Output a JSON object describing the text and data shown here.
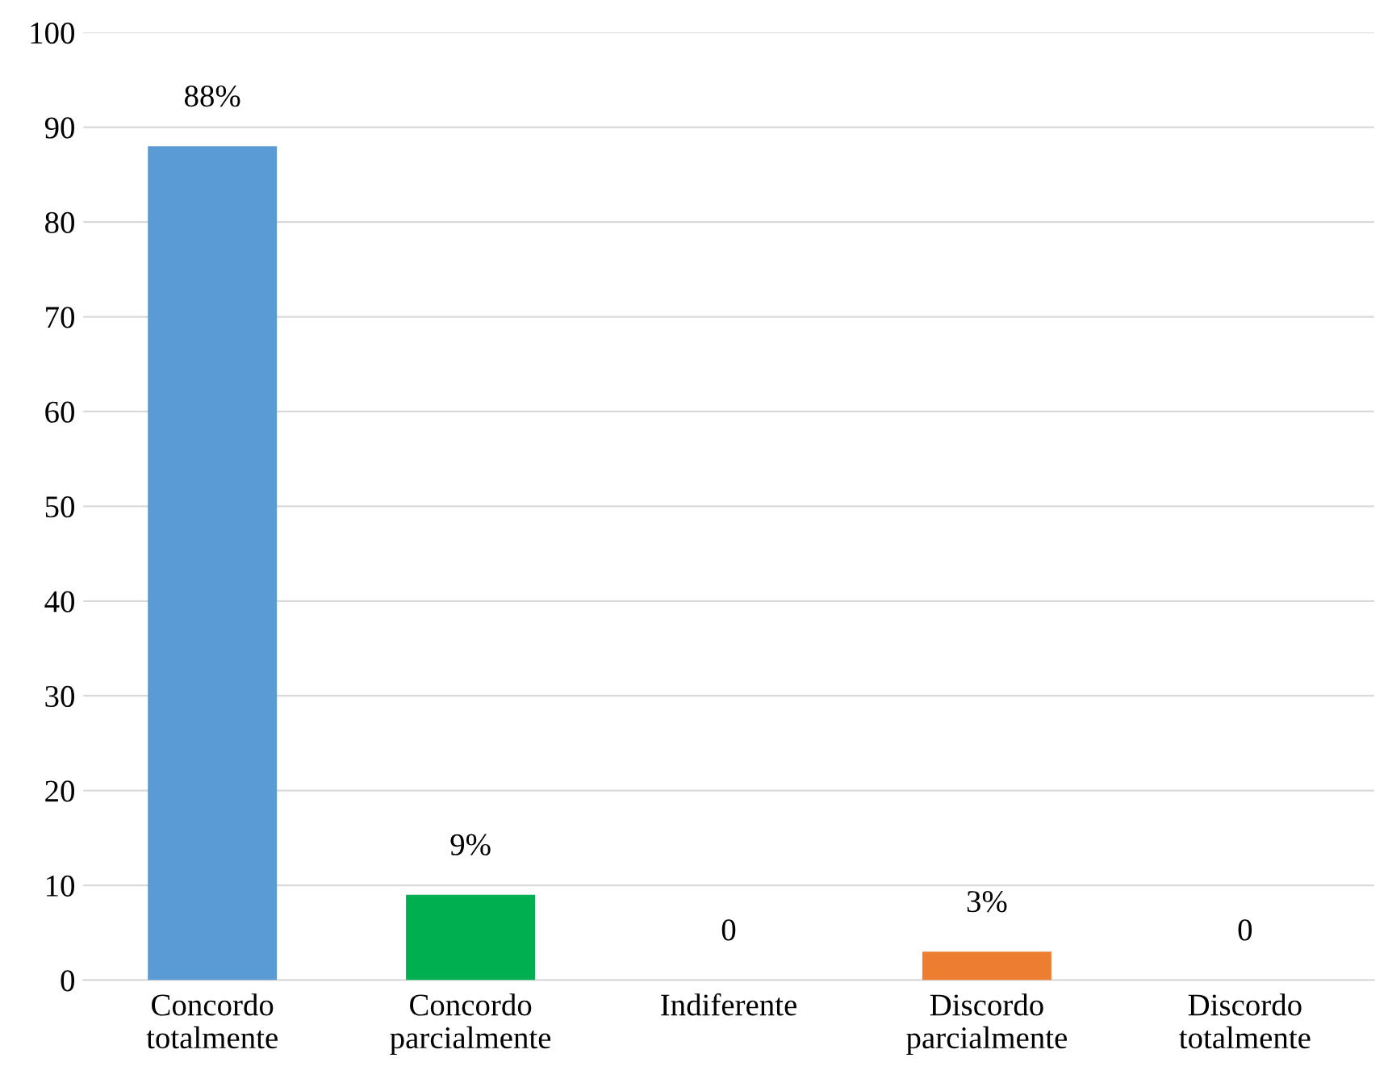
{
  "chart_data": {
    "type": "bar",
    "categories": [
      "Concordo\ntotalmente",
      "Concordo\nparcialmente",
      "Indiferente",
      "Discordo\nparcialmente",
      "Discordo\ntotalmente"
    ],
    "values": [
      88,
      9,
      0,
      3,
      0
    ],
    "colors": [
      "#5b9bd5",
      "#00b050",
      null,
      "#ed7d31",
      null
    ],
    "value_labels": [
      "88%",
      "9%",
      "0",
      "3%",
      "0"
    ],
    "ylim": [
      0,
      100
    ],
    "yticks": [
      0,
      10,
      20,
      30,
      40,
      50,
      60,
      70,
      80,
      90,
      100
    ],
    "grid": "y"
  }
}
